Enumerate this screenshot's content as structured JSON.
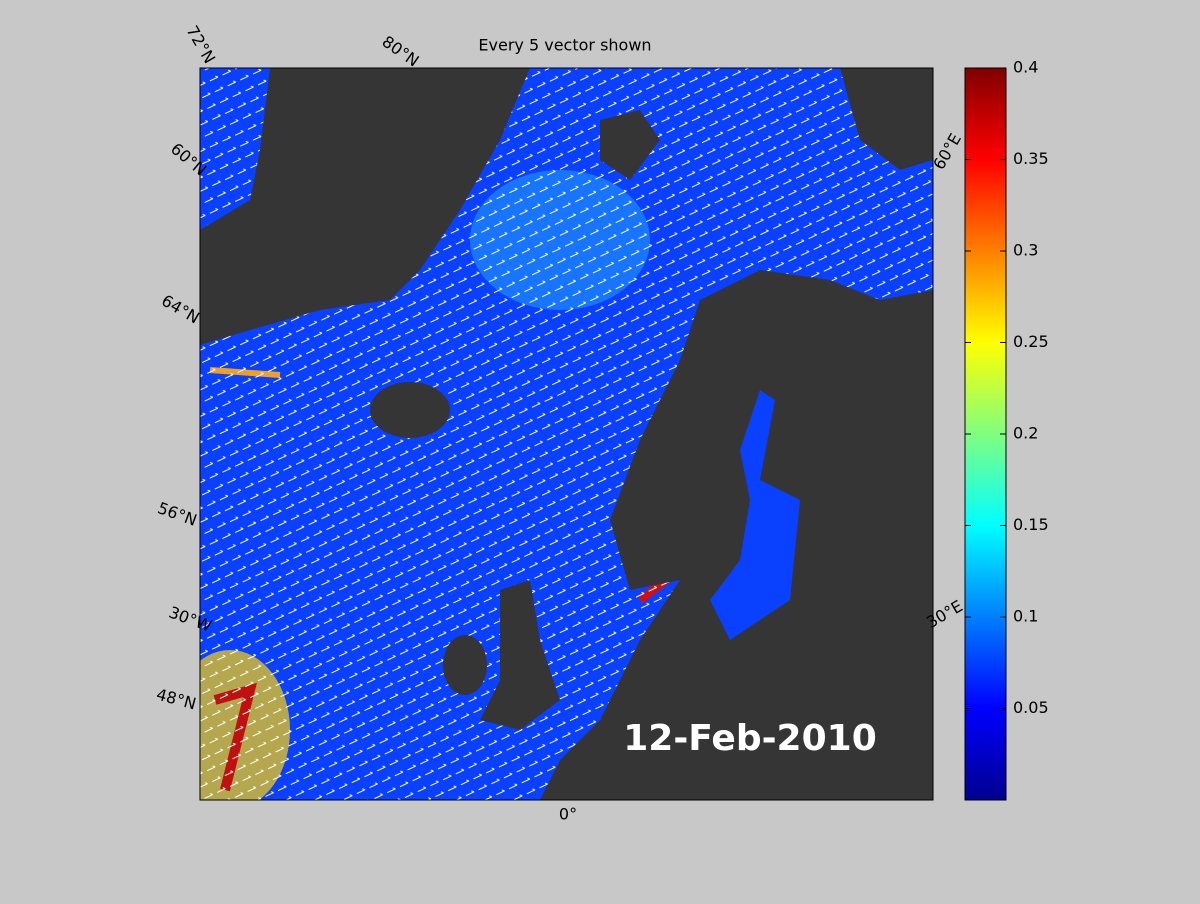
{
  "title": "Every 5 vector shown",
  "date_label": "12-Feb-2010",
  "map_labels": [
    "72°N",
    "80°N",
    "60°N",
    "64°N",
    "56°N",
    "30°W",
    "48°N",
    "0°",
    "60°E",
    "30°E"
  ],
  "colorbar": {
    "lim": [
      0,
      0.4
    ],
    "ticks": [
      0.05,
      0.1,
      0.15,
      0.2,
      0.25,
      0.3,
      0.35,
      0.4
    ]
  }
}
